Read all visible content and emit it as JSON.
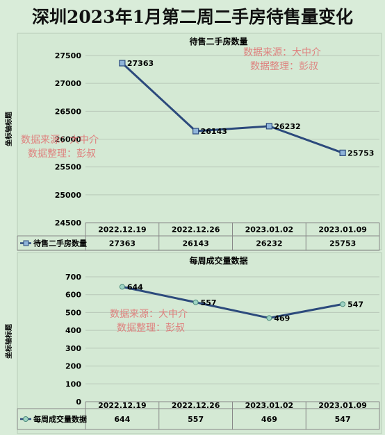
{
  "page_title": "深圳2023年1月第二周二手房待售量变化",
  "watermark": {
    "line1": "数据来源：大中介",
    "line2": "数据整理：彭叔"
  },
  "chart_data": [
    {
      "type": "line",
      "title": "待售二手房数量",
      "ylabel": "坐标轴标题",
      "xlabel": "",
      "categories": [
        "2022.12.19",
        "2022.12.26",
        "2023.01.02",
        "2023.01.09"
      ],
      "series": [
        {
          "name": "待售二手房数量",
          "values": [
            27363,
            26143,
            26232,
            25753
          ]
        }
      ],
      "ylim": [
        24500,
        27500
      ],
      "yticks": [
        24500,
        25000,
        25500,
        26000,
        26500,
        27000,
        27500
      ],
      "yticks_text": [
        "24500",
        "25000",
        "25500",
        "26000",
        "26500",
        "27000",
        "27500"
      ],
      "data_labels": [
        "27363",
        "26143",
        "26232",
        "25753"
      ],
      "table_values": [
        "27363",
        "26143",
        "26232",
        "25753"
      ],
      "marker": "square",
      "colors": {
        "line": "#2c4a7c",
        "marker_fill": "#8fb4d9"
      },
      "grid": true,
      "legend": "data-table"
    },
    {
      "type": "line",
      "title": "每周成交量数据",
      "ylabel": "坐标轴标题",
      "xlabel": "",
      "categories": [
        "2022.12.19",
        "2022.12.26",
        "2023.01.02",
        "2023.01.09"
      ],
      "series": [
        {
          "name": "每周成交量数据",
          "values": [
            644,
            557,
            469,
            547
          ]
        }
      ],
      "ylim": [
        0,
        700
      ],
      "yticks": [
        0,
        100,
        200,
        300,
        400,
        500,
        600,
        700
      ],
      "yticks_text": [
        "0",
        "100",
        "200",
        "300",
        "400",
        "500",
        "600",
        "700"
      ],
      "data_labels": [
        "644",
        "557",
        "469",
        "547"
      ],
      "table_values": [
        "644",
        "557",
        "469",
        "547"
      ],
      "marker": "circle",
      "colors": {
        "line": "#2c4a7c",
        "marker_fill": "#9fd4c4"
      },
      "grid": true,
      "legend": "data-table"
    }
  ]
}
